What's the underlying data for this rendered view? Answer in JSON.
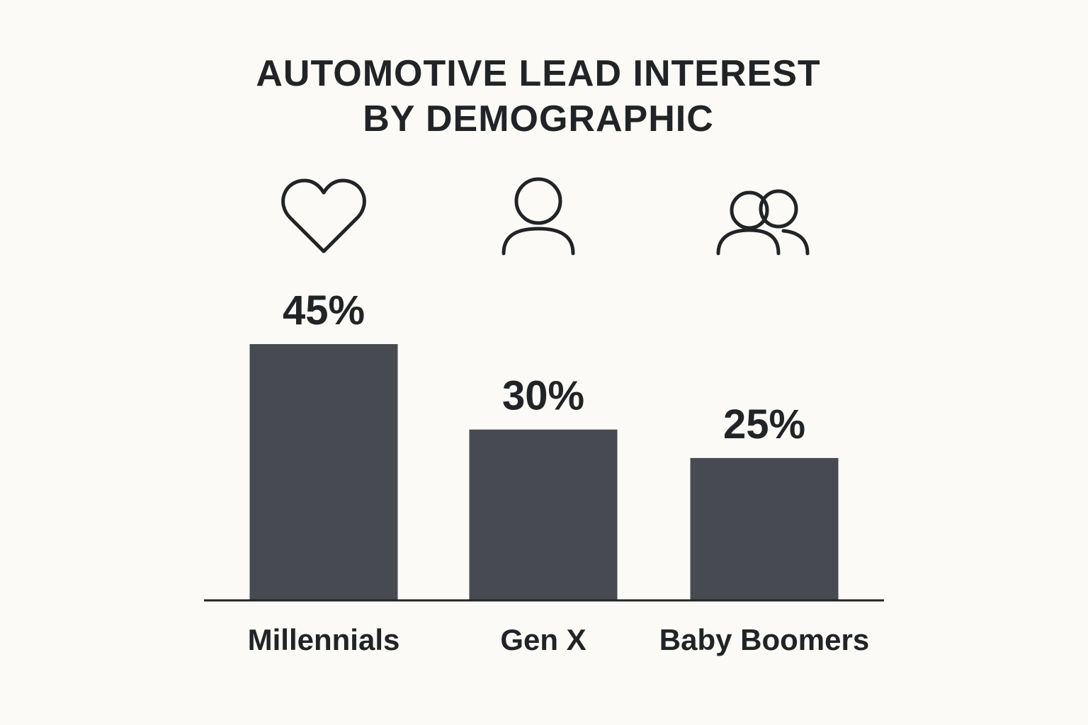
{
  "chart_data": {
    "type": "bar",
    "title_lines": [
      "AUTOMOTIVE LEAD INTEREST",
      "BY DEMOGRAPHIC"
    ],
    "categories": [
      "Millennials",
      "Gen X",
      "Baby Boomers"
    ],
    "values": [
      45,
      30,
      25
    ],
    "value_labels": [
      "45%",
      "30%",
      "25%"
    ],
    "icons": [
      "heart-icon",
      "person-icon",
      "group-icon"
    ],
    "unit": "%",
    "xlabel": "",
    "ylabel": "",
    "ylim": [
      0,
      45
    ],
    "grid": false,
    "legend": "none",
    "colors": {
      "bar": "#474b51",
      "text": "#212427",
      "background": "#fcfaf6"
    }
  }
}
